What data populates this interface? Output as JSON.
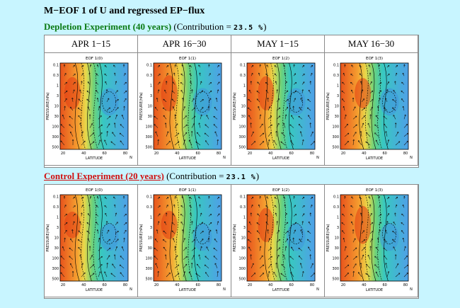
{
  "title": "M−EOF 1 of U and regressed EP−flux",
  "sections": [
    {
      "experiment": "Depletion Experiment (40 years)",
      "contribution_prefix": " (Contribution = ",
      "contribution_value": "23.5 %",
      "contribution_suffix": ")",
      "color": "#0a7a12",
      "panel_titles": [
        "EOF 1(0)",
        "EOF 1(1)",
        "EOF 1(2)",
        "EOF 1(3)"
      ],
      "warm_strength": [
        0.85,
        0.95,
        0.9,
        0.8
      ]
    },
    {
      "experiment": "Control Experiment (20 years)",
      "contribution_prefix": " (Contribution = ",
      "contribution_value": "23.1 %",
      "contribution_suffix": ")",
      "color": "#d01010",
      "panel_titles": [
        "EOF 1(0)",
        "EOF 1(1)",
        "EOF 1(2)",
        "EOF 1(3)"
      ],
      "warm_strength": [
        0.7,
        0.75,
        0.9,
        1.0
      ]
    }
  ],
  "columns": [
    "APR 1−15",
    "APR 16−30",
    "MAY 1−15",
    "MAY 16−30"
  ],
  "axes": {
    "ylabel": "PRESSURE(hPa)",
    "xlabel": "LATITUDE",
    "x_unit": "N",
    "yticks": [
      "0.1",
      "0.3",
      "1",
      "3",
      "10",
      "30",
      "100",
      "300",
      "500"
    ],
    "xticks": [
      "20",
      "40",
      "60",
      "80"
    ]
  },
  "colors": {
    "background": "#c8f5ff",
    "warm": "#e8531c",
    "cool": "#4fa0e8",
    "mid": "#6cd27a"
  }
}
